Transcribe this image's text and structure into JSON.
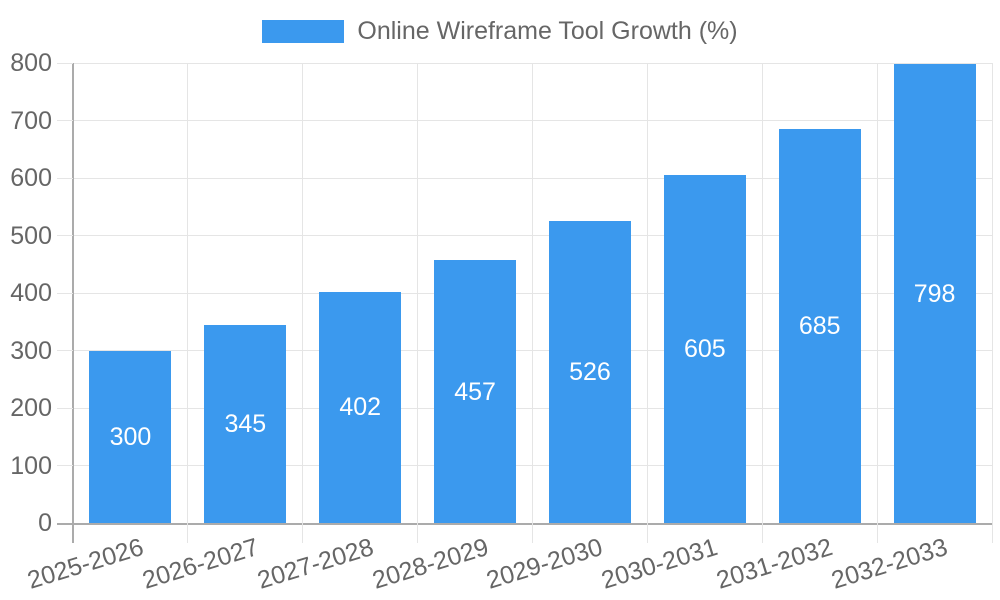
{
  "chart_data": {
    "type": "bar",
    "legend": {
      "label": "Online Wireframe Tool Growth (%)",
      "position": "top"
    },
    "categories": [
      "2025-2026",
      "2026-2027",
      "2027-2028",
      "2028-2029",
      "2029-2030",
      "2030-2031",
      "2031-2032",
      "2032-2033"
    ],
    "values": [
      300,
      345,
      402,
      457,
      526,
      605,
      685,
      798
    ],
    "value_labels": [
      "300",
      "345",
      "402",
      "457",
      "526",
      "605",
      "685",
      "798"
    ],
    "xlabel": "",
    "ylabel": "",
    "ylim": [
      0,
      800
    ],
    "ytick_step": 100,
    "yticks": [
      0,
      100,
      200,
      300,
      400,
      500,
      600,
      700,
      800
    ],
    "grid": true,
    "x_label_rotation_deg": -17,
    "colors": {
      "bar": "#3B99EE",
      "value_label": "#FFFFFF",
      "axis_text": "#666666",
      "gridline": "#E5E5E5",
      "axis_line": "#ABABAB"
    }
  }
}
